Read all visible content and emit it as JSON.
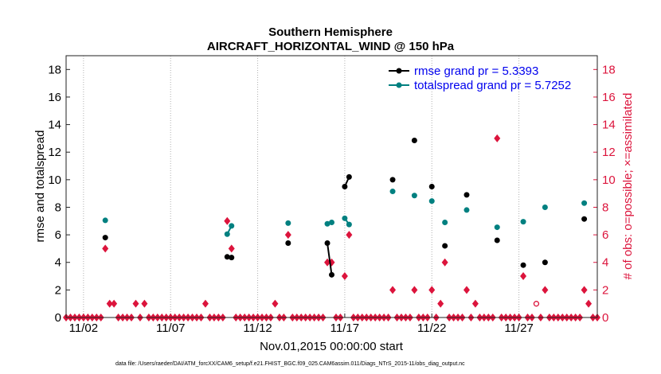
{
  "chart_data": {
    "type": "scatter",
    "title_line1": "Southern Hemisphere",
    "title_line2": "AIRCRAFT_HORIZONTAL_WIND @ 150 hPa",
    "xlabel": "Nov.01,2015 00:00:00 start",
    "ylabel_left": "rmse and totalspread",
    "ylabel_right": "# of obs: o=possible; ×=assimilated",
    "footnote": "data file: /Users/raeder/DAI/ATM_forcXX/CAM6_setup/f.e21.FHIST_BGC.f09_025.CAM6assim.011/Diags_NTrS_2015-11/obs_diag_output.nc",
    "xlim": [
      1,
      31.5
    ],
    "ylim": [
      0,
      19
    ],
    "x_ticks": [
      2,
      7,
      12,
      17,
      22,
      27
    ],
    "x_tick_labels": [
      "11/02",
      "11/07",
      "11/12",
      "11/17",
      "11/22",
      "11/27"
    ],
    "y_ticks": [
      0,
      2,
      4,
      6,
      8,
      10,
      12,
      14,
      16,
      18
    ],
    "y_tick_labels": [
      "0",
      "2",
      "4",
      "6",
      "8",
      "10",
      "12",
      "14",
      "16",
      "18"
    ],
    "right_ticks": [
      0,
      2,
      4,
      6,
      8,
      10,
      12,
      14,
      16,
      18
    ],
    "right_tick_labels": [
      "0",
      "2",
      "4",
      "6",
      "8",
      "10",
      "12",
      "14",
      "16",
      "18"
    ],
    "series": [
      {
        "name": "rmse",
        "legend": "rmse grand pr = 5.3393",
        "color": "#000000",
        "segments": [
          [
            [
              3.25,
              5.8
            ]
          ],
          [
            [
              10.25,
              4.4
            ],
            [
              10.5,
              4.35
            ]
          ],
          [
            [
              13.75,
              5.4
            ]
          ],
          [
            [
              16.0,
              5.4
            ],
            [
              16.25,
              3.1
            ]
          ],
          [
            [
              17.0,
              9.5
            ],
            [
              17.25,
              10.2
            ]
          ],
          [
            [
              19.75,
              10.0
            ]
          ],
          [
            [
              21.0,
              12.85
            ]
          ],
          [
            [
              22.0,
              9.5
            ]
          ],
          [
            [
              22.75,
              5.2
            ]
          ],
          [
            [
              24.0,
              8.9
            ]
          ],
          [
            [
              25.75,
              5.6
            ]
          ],
          [
            [
              27.25,
              3.8
            ]
          ],
          [
            [
              28.5,
              4.0
            ]
          ],
          [
            [
              30.75,
              7.15
            ]
          ]
        ]
      },
      {
        "name": "totalspread",
        "legend": "totalspread grand pr = 5.7252",
        "color": "#008080",
        "segments": [
          [
            [
              3.25,
              7.05
            ]
          ],
          [
            [
              10.25,
              6.05
            ],
            [
              10.5,
              6.65
            ]
          ],
          [
            [
              13.75,
              6.85
            ]
          ],
          [
            [
              16.0,
              6.8
            ],
            [
              16.25,
              6.9
            ]
          ],
          [
            [
              17.0,
              7.2
            ],
            [
              17.25,
              6.75
            ]
          ],
          [
            [
              19.75,
              9.15
            ]
          ],
          [
            [
              21.0,
              8.85
            ]
          ],
          [
            [
              22.0,
              8.45
            ]
          ],
          [
            [
              22.75,
              6.9
            ]
          ],
          [
            [
              24.0,
              7.8
            ]
          ],
          [
            [
              25.75,
              6.55
            ]
          ],
          [
            [
              27.25,
              6.95
            ]
          ],
          [
            [
              28.5,
              8.0
            ]
          ],
          [
            [
              30.75,
              8.3
            ]
          ]
        ]
      }
    ],
    "obs_assimilated": {
      "name": "assimilated",
      "color": "#dc143c",
      "x": [
        3.25,
        3.5,
        3.75,
        5.0,
        5.5,
        9.0,
        10.25,
        10.5,
        13.0,
        13.75,
        16.0,
        16.25,
        17.0,
        17.25,
        19.75,
        21.0,
        22.0,
        22.5,
        22.75,
        24.0,
        24.5,
        25.75,
        27.25,
        28.5,
        30.75,
        31.0
      ],
      "y": [
        5,
        1,
        1,
        1,
        1,
        1,
        7,
        5,
        1,
        6,
        4,
        4,
        3,
        6,
        2,
        2,
        2,
        1,
        4,
        2,
        1,
        13,
        3,
        2,
        2,
        1
      ]
    },
    "obs_possible_extra": {
      "name": "possible",
      "color": "#dc143c",
      "x": [
        28.0
      ],
      "y": [
        1
      ]
    }
  }
}
